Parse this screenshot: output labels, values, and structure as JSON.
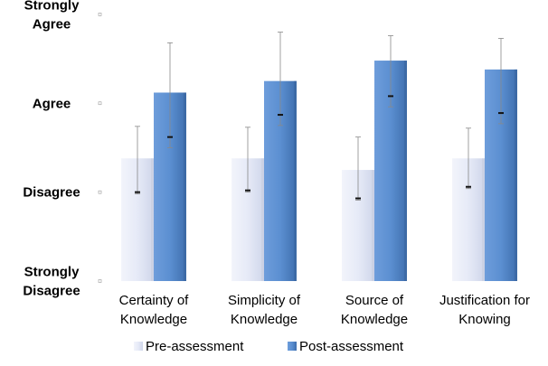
{
  "chart_data": {
    "type": "bar",
    "categories": [
      [
        "Certainty of",
        "Knowledge"
      ],
      [
        "Simplicity of",
        "Knowledge"
      ],
      [
        "Source of",
        "Knowledge"
      ],
      [
        "Justification for",
        "Knowing"
      ]
    ],
    "y_ticks": [
      {
        "value": 1,
        "label": [
          "Strongly",
          "Disagree"
        ]
      },
      {
        "value": 2,
        "label": [
          "Disagree"
        ]
      },
      {
        "value": 3,
        "label": [
          "Agree"
        ]
      },
      {
        "value": 4,
        "label": [
          "Strongly",
          "Agree"
        ]
      }
    ],
    "ylim": [
      1,
      4.06
    ],
    "series": [
      {
        "name": "Pre-assessment",
        "color": "#e4e8f6",
        "values": [
          2.38,
          2.38,
          2.25,
          2.38
        ],
        "error_low": [
          1.98,
          2.0,
          1.91,
          2.04
        ],
        "error_high": [
          2.74,
          2.73,
          2.62,
          2.72
        ],
        "mean_marker": [
          2.0,
          2.02,
          1.93,
          2.06
        ]
      },
      {
        "name": "Post-assessment",
        "color": "#5b8fd1",
        "values": [
          3.12,
          3.25,
          3.48,
          3.38
        ],
        "error_low": [
          2.5,
          2.75,
          2.96,
          2.77
        ],
        "error_high": [
          3.68,
          3.8,
          3.76,
          3.73
        ],
        "mean_marker": [
          2.62,
          2.87,
          3.08,
          2.89
        ]
      }
    ],
    "grid": false,
    "legend": "bottom"
  }
}
